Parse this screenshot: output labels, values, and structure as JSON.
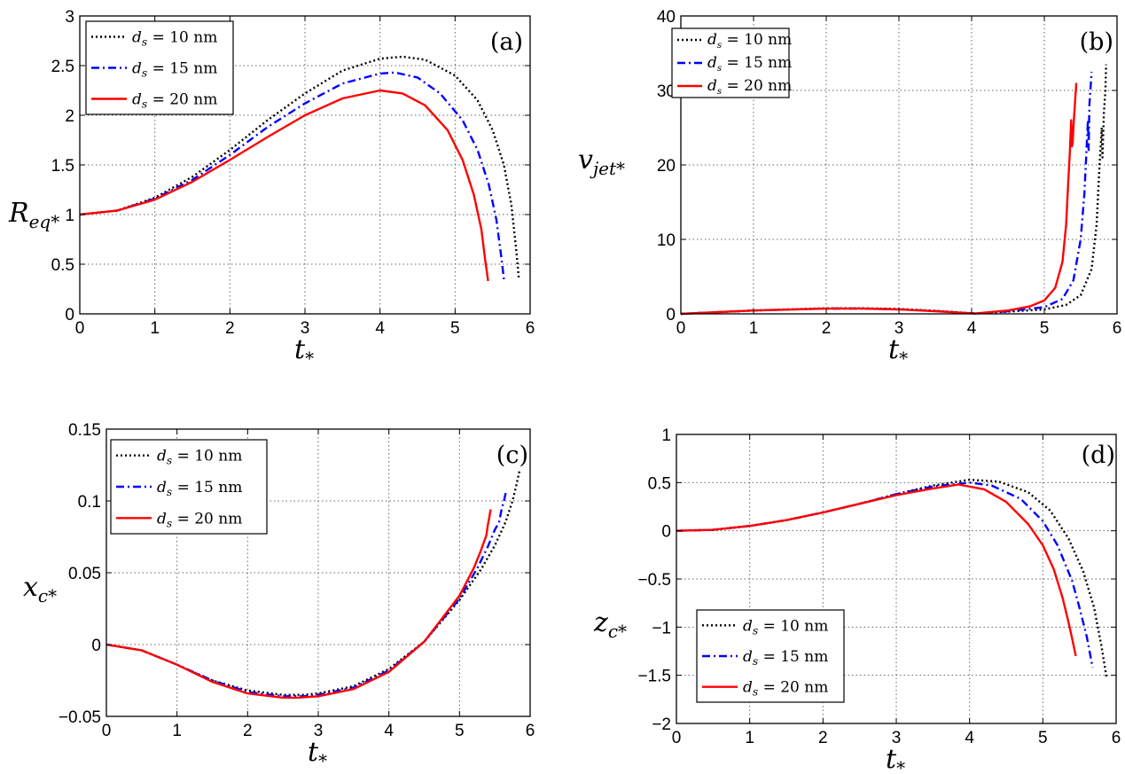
{
  "style": {
    "series_colors": [
      "#000000",
      "#0000ff",
      "#ff0000"
    ],
    "series_dash": [
      "dotted",
      "dashdot",
      "solid"
    ]
  },
  "legend_entries": [
    {
      "var": "d",
      "sub": "s",
      "text": " = 10 nm"
    },
    {
      "var": "d",
      "sub": "s",
      "text": " = 15 nm"
    },
    {
      "var": "d",
      "sub": "s",
      "text": " = 20 nm"
    }
  ],
  "chart_data": [
    {
      "id": "a",
      "type": "line",
      "panel_label": "(a)",
      "xlabel": {
        "main": "t",
        "sub": "*"
      },
      "ylabel": {
        "main": "R",
        "sub": "eq*"
      },
      "xlim": [
        0,
        6
      ],
      "ylim": [
        0,
        3
      ],
      "xticks": [
        0,
        1,
        2,
        3,
        4,
        5,
        6
      ],
      "yticks": [
        0,
        0.5,
        1,
        1.5,
        2,
        2.5,
        3
      ],
      "yticklabels": [
        "0",
        "0.5",
        "1",
        "1.5",
        "2",
        "2.5",
        "3"
      ],
      "grid": true,
      "legend_position": "top-left",
      "series": [
        {
          "name": "d_s = 10 nm",
          "x": [
            0,
            0.5,
            1,
            1.5,
            2,
            2.5,
            3,
            3.5,
            4,
            4.3,
            4.6,
            5,
            5.3,
            5.5,
            5.65,
            5.75,
            5.82,
            5.85
          ],
          "y": [
            1.0,
            1.04,
            1.17,
            1.38,
            1.65,
            1.95,
            2.22,
            2.45,
            2.57,
            2.59,
            2.56,
            2.4,
            2.15,
            1.85,
            1.5,
            1.1,
            0.6,
            0.35
          ]
        },
        {
          "name": "d_s = 15 nm",
          "x": [
            0,
            0.5,
            1,
            1.5,
            2,
            2.5,
            3,
            3.5,
            4,
            4.2,
            4.5,
            4.8,
            5.1,
            5.3,
            5.45,
            5.55,
            5.62,
            5.65
          ],
          "y": [
            1.0,
            1.04,
            1.16,
            1.35,
            1.6,
            1.88,
            2.12,
            2.32,
            2.42,
            2.43,
            2.38,
            2.22,
            1.95,
            1.65,
            1.3,
            0.95,
            0.55,
            0.35
          ]
        },
        {
          "name": "d_s = 20 nm",
          "x": [
            0,
            0.5,
            1,
            1.5,
            2,
            2.5,
            3,
            3.5,
            4,
            4.3,
            4.6,
            4.9,
            5.1,
            5.25,
            5.35,
            5.4,
            5.44
          ],
          "y": [
            1.0,
            1.04,
            1.15,
            1.33,
            1.55,
            1.78,
            2.0,
            2.17,
            2.25,
            2.22,
            2.1,
            1.85,
            1.55,
            1.2,
            0.85,
            0.55,
            0.33
          ]
        }
      ]
    },
    {
      "id": "b",
      "type": "line",
      "panel_label": "(b)",
      "xlabel": {
        "main": "t",
        "sub": "*"
      },
      "ylabel": {
        "main": "v",
        "sub": "jet*"
      },
      "xlim": [
        0,
        6
      ],
      "ylim": [
        0,
        40
      ],
      "xticks": [
        0,
        1,
        2,
        3,
        4,
        5,
        6
      ],
      "yticks": [
        0,
        10,
        20,
        30,
        40
      ],
      "yticklabels": [
        "0",
        "10",
        "20",
        "30",
        "40"
      ],
      "grid": true,
      "legend_position": "top-left",
      "series": [
        {
          "name": "d_s = 10 nm",
          "x": [
            0,
            1,
            2,
            2.5,
            3,
            3.5,
            4.05,
            4.5,
            5,
            5.3,
            5.5,
            5.65,
            5.72,
            5.76,
            5.79,
            5.8,
            5.82,
            5.84,
            5.85
          ],
          "y": [
            0,
            0.45,
            0.75,
            0.75,
            0.65,
            0.4,
            0.05,
            0.3,
            0.6,
            1.2,
            2.5,
            6,
            12,
            20,
            25,
            21,
            27,
            30,
            33.5
          ]
        },
        {
          "name": "d_s = 15 nm",
          "x": [
            0,
            1,
            2,
            2.5,
            3,
            3.5,
            4.05,
            4.5,
            5,
            5.25,
            5.4,
            5.5,
            5.55,
            5.58,
            5.6,
            5.61,
            5.62,
            5.64,
            5.65
          ],
          "y": [
            0,
            0.45,
            0.72,
            0.72,
            0.62,
            0.38,
            0.05,
            0.35,
            0.9,
            2.0,
            4.5,
            10,
            16,
            22,
            26,
            22,
            28,
            31,
            32.5
          ]
        },
        {
          "name": "d_s = 20 nm",
          "x": [
            0,
            1,
            2,
            2.5,
            3,
            3.5,
            4.05,
            4.5,
            4.8,
            5,
            5.15,
            5.25,
            5.3,
            5.33,
            5.35,
            5.37,
            5.38,
            5.39,
            5.4,
            5.42,
            5.44
          ],
          "y": [
            0,
            0.45,
            0.7,
            0.7,
            0.6,
            0.35,
            0.05,
            0.45,
            1.0,
            1.8,
            3.5,
            7,
            12,
            18,
            21.5,
            26,
            22.5,
            23,
            25,
            28,
            31
          ]
        }
      ]
    },
    {
      "id": "c",
      "type": "line",
      "panel_label": "(c)",
      "xlabel": {
        "main": "t",
        "sub": "*"
      },
      "ylabel": {
        "main": "x",
        "sub": "c*"
      },
      "xlim": [
        0,
        6
      ],
      "ylim": [
        -0.05,
        0.15
      ],
      "xticks": [
        0,
        1,
        2,
        3,
        4,
        5,
        6
      ],
      "yticks": [
        -0.05,
        0,
        0.05,
        0.1,
        0.15
      ],
      "yticklabels": [
        "−0.05",
        "0",
        "0.05",
        "0.1",
        "0.15"
      ],
      "grid": true,
      "legend_position": "top-left",
      "series": [
        {
          "name": "d_s = 10 nm",
          "x": [
            0,
            0.5,
            1,
            1.5,
            2,
            2.5,
            2.8,
            3,
            3.5,
            4,
            4.5,
            5,
            5.3,
            5.5,
            5.65,
            5.75,
            5.8,
            5.85
          ],
          "y": [
            0,
            -0.004,
            -0.014,
            -0.025,
            -0.032,
            -0.035,
            -0.035,
            -0.034,
            -0.029,
            -0.017,
            0.002,
            0.031,
            0.052,
            0.069,
            0.085,
            0.1,
            0.11,
            0.121
          ]
        },
        {
          "name": "d_s = 15 nm",
          "x": [
            0,
            0.5,
            1,
            1.5,
            2,
            2.5,
            2.8,
            3,
            3.5,
            4,
            4.5,
            5,
            5.25,
            5.4,
            5.5,
            5.56,
            5.6,
            5.63,
            5.66
          ],
          "y": [
            0,
            -0.004,
            -0.014,
            -0.025,
            -0.033,
            -0.036,
            -0.036,
            -0.035,
            -0.03,
            -0.018,
            0.002,
            0.032,
            0.053,
            0.068,
            0.08,
            0.085,
            0.095,
            0.1,
            0.107
          ]
        },
        {
          "name": "d_s = 20 nm",
          "x": [
            0,
            0.5,
            1,
            1.5,
            2,
            2.5,
            2.7,
            3,
            3.5,
            4,
            4.5,
            5,
            5.2,
            5.3,
            5.35,
            5.38,
            5.4,
            5.42,
            5.44
          ],
          "y": [
            0,
            -0.004,
            -0.014,
            -0.026,
            -0.034,
            -0.037,
            -0.037,
            -0.036,
            -0.031,
            -0.019,
            0.002,
            0.034,
            0.053,
            0.065,
            0.072,
            0.076,
            0.083,
            0.088,
            0.094
          ]
        }
      ]
    },
    {
      "id": "d",
      "type": "line",
      "panel_label": "(d)",
      "xlabel": {
        "main": "t",
        "sub": "*"
      },
      "ylabel": {
        "main": "z",
        "sub": "c*"
      },
      "xlim": [
        0,
        6
      ],
      "ylim": [
        -2,
        1
      ],
      "xticks": [
        0,
        1,
        2,
        3,
        4,
        5,
        6
      ],
      "yticks": [
        -2,
        -1.5,
        -1,
        -0.5,
        0,
        0.5,
        1
      ],
      "yticklabels": [
        "−2",
        "−1.5",
        "−1",
        "−0.5",
        "0",
        "0.5",
        "1"
      ],
      "grid": true,
      "legend_position": "bottom-left",
      "series": [
        {
          "name": "d_s = 10 nm",
          "x": [
            0,
            0.5,
            1,
            1.5,
            2,
            2.5,
            3,
            3.5,
            4,
            4.4,
            4.8,
            5.1,
            5.35,
            5.55,
            5.7,
            5.8,
            5.87
          ],
          "y": [
            0,
            0.01,
            0.05,
            0.11,
            0.19,
            0.28,
            0.38,
            0.47,
            0.53,
            0.51,
            0.4,
            0.21,
            -0.08,
            -0.42,
            -0.8,
            -1.2,
            -1.53
          ]
        },
        {
          "name": "d_s = 15 nm",
          "x": [
            0,
            0.5,
            1,
            1.5,
            2,
            2.5,
            3,
            3.5,
            4,
            4.3,
            4.7,
            5,
            5.2,
            5.4,
            5.5,
            5.6,
            5.68
          ],
          "y": [
            0,
            0.01,
            0.05,
            0.11,
            0.19,
            0.28,
            0.38,
            0.46,
            0.5,
            0.47,
            0.33,
            0.1,
            -0.15,
            -0.52,
            -0.8,
            -1.1,
            -1.42
          ]
        },
        {
          "name": "d_s = 20 nm",
          "x": [
            0,
            0.5,
            1,
            1.5,
            2,
            2.5,
            3,
            3.5,
            3.85,
            4.2,
            4.5,
            4.8,
            5,
            5.15,
            5.27,
            5.35,
            5.4,
            5.45
          ],
          "y": [
            0,
            0.01,
            0.05,
            0.11,
            0.19,
            0.28,
            0.37,
            0.44,
            0.48,
            0.43,
            0.3,
            0.07,
            -0.15,
            -0.4,
            -0.7,
            -0.95,
            -1.12,
            -1.3
          ]
        }
      ]
    }
  ]
}
